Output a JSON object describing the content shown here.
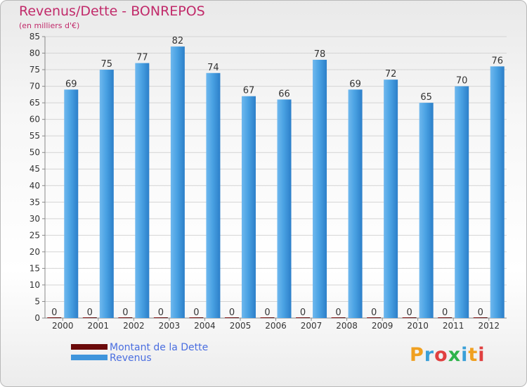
{
  "chart_data": {
    "type": "bar",
    "title": "Revenus/Dette - BONREPOS",
    "subtitle": "(en milliers d'€)",
    "categories": [
      "2000",
      "2001",
      "2002",
      "2003",
      "2004",
      "2005",
      "2006",
      "2007",
      "2008",
      "2009",
      "2010",
      "2011",
      "2012"
    ],
    "series": [
      {
        "name": "Montant de la Dette",
        "color": "#6b0a0a",
        "values": [
          0,
          0,
          0,
          0,
          0,
          0,
          0,
          0,
          0,
          0,
          0,
          0,
          0
        ]
      },
      {
        "name": "Revenus",
        "color": "#3f95dc",
        "values": [
          69,
          75,
          77,
          82,
          74,
          67,
          66,
          78,
          69,
          72,
          65,
          70,
          76
        ]
      }
    ],
    "ylim": [
      0,
      85
    ],
    "yticks": [
      0,
      5,
      10,
      15,
      20,
      25,
      30,
      35,
      40,
      45,
      50,
      55,
      60,
      65,
      70,
      75,
      80,
      85
    ],
    "xlabel": "",
    "ylabel": "",
    "grid": true,
    "legend": "bottom-left"
  },
  "logo": {
    "text": "Proxiti",
    "letter_colors": [
      "#f0a020",
      "#3aa0d8",
      "#e04040",
      "#2db34a",
      "#3aa0d8",
      "#f0a020",
      "#e04040"
    ]
  }
}
